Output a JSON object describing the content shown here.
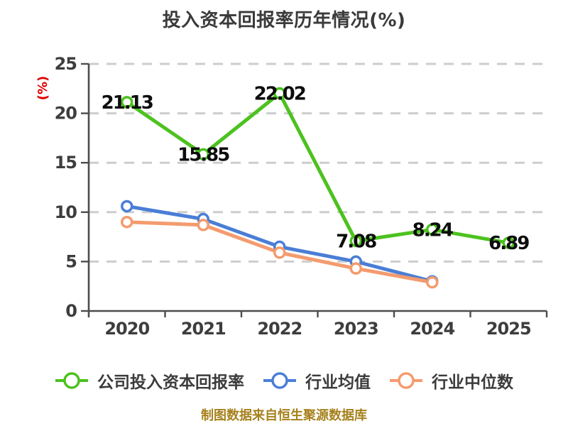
{
  "chart_data": {
    "type": "line",
    "title": "投入资本回报率历年情况(%)",
    "ylabel": "(%)",
    "xlabel": "",
    "categories": [
      "2020",
      "2021",
      "2022",
      "2023",
      "2024",
      "2025"
    ],
    "series": [
      {
        "name": "公司投入资本回报率",
        "color": "#4cc21f",
        "values": [
          21.13,
          15.85,
          22.02,
          7.08,
          8.24,
          6.89
        ],
        "show_labels": true
      },
      {
        "name": "行业均值",
        "color": "#4a7ed6",
        "values": [
          10.6,
          9.3,
          6.5,
          5.0,
          3.0,
          null
        ],
        "show_labels": false
      },
      {
        "name": "行业中位数",
        "color": "#f49b6e",
        "values": [
          9.0,
          8.7,
          5.9,
          4.3,
          2.9,
          null
        ],
        "show_labels": false
      }
    ],
    "ylim": [
      0,
      25
    ],
    "yticks": [
      0,
      5,
      10,
      15,
      20,
      25
    ],
    "grid": "horizontal-dashed",
    "legend_position": "bottom",
    "source_note": "制图数据来自恒生聚源数据库"
  },
  "style_colors": {
    "title": "#3a3a3a",
    "axis": "#4d4d4d",
    "tick_label": "#3d3d3d",
    "gridline": "#cdcdcd",
    "data_label": "#0d0d0d",
    "ylabel": "#e00000",
    "source_note": "#a6811d",
    "background": "#ffffff"
  }
}
